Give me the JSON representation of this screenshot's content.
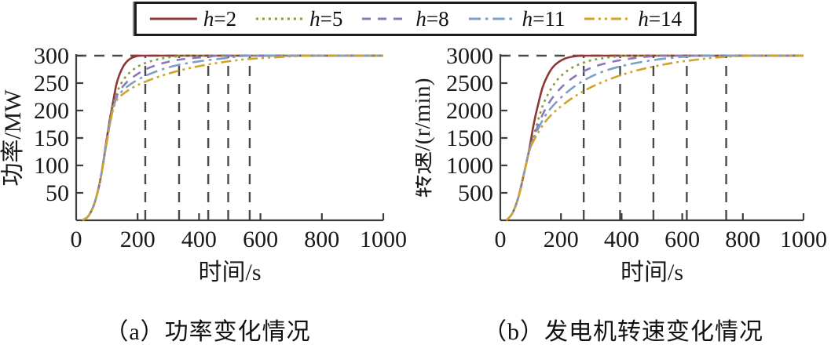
{
  "colors": {
    "axis": "#3d3d3d",
    "text": "#1a1a1a",
    "guide_dash": "#4a4a4a",
    "legend_border": "#1a1a1a"
  },
  "legend": {
    "items": [
      {
        "label": "h=2",
        "color": "#8e3734",
        "dash": "solid"
      },
      {
        "label": "h=5",
        "color": "#8a9a3c",
        "dash": "dotted"
      },
      {
        "label": "h=8",
        "color": "#8779b9",
        "dash": "dashed"
      },
      {
        "label": "h=11",
        "color": "#7d9fc7",
        "dash": "dashdot"
      },
      {
        "label": "h=14",
        "color": "#d2a32b",
        "dash": "dashdotdot"
      }
    ]
  },
  "chart_data": [
    {
      "type": "line",
      "title": "（a）功率变化情况",
      "xlabel": "时间/s",
      "ylabel": "功率/MW",
      "xlim": [
        0,
        1000
      ],
      "ylim": [
        0,
        300
      ],
      "xticks": [
        0,
        200,
        400,
        600,
        800,
        1000
      ],
      "yticks": [
        50,
        100,
        150,
        200,
        250,
        300
      ],
      "grid": false,
      "legend_position": "top-outside",
      "steady_state_dashed_line_y": 300,
      "settling_time_dashed_lines_x": [
        225,
        335,
        430,
        495,
        565
      ],
      "series": [
        {
          "name": "h=2",
          "x": [
            20,
            40,
            60,
            80,
            100,
            110,
            120,
            130,
            140,
            155,
            170,
            190,
            210,
            260,
            1000
          ],
          "y": [
            0,
            8,
            32,
            78,
            150,
            185,
            215,
            245,
            264,
            282,
            292,
            298,
            300,
            300,
            300
          ]
        },
        {
          "name": "h=5",
          "x": [
            20,
            40,
            60,
            80,
            100,
            110,
            120,
            135,
            155,
            180,
            210,
            250,
            290,
            335,
            400,
            1000
          ],
          "y": [
            0,
            8,
            32,
            78,
            148,
            182,
            210,
            236,
            257,
            272,
            283,
            291,
            296,
            299,
            300,
            300
          ]
        },
        {
          "name": "h=8",
          "x": [
            20,
            40,
            60,
            80,
            100,
            110,
            120,
            135,
            160,
            190,
            230,
            280,
            340,
            430,
            510,
            1000
          ],
          "y": [
            0,
            8,
            32,
            78,
            146,
            179,
            207,
            230,
            249,
            263,
            276,
            286,
            293,
            298,
            300,
            300
          ]
        },
        {
          "name": "h=11",
          "x": [
            20,
            40,
            60,
            80,
            100,
            110,
            120,
            135,
            165,
            200,
            250,
            310,
            380,
            495,
            590,
            1000
          ],
          "y": [
            0,
            8,
            32,
            78,
            145,
            177,
            204,
            226,
            243,
            256,
            269,
            280,
            288,
            296,
            300,
            300
          ]
        },
        {
          "name": "h=14",
          "x": [
            20,
            40,
            60,
            80,
            100,
            110,
            120,
            135,
            170,
            210,
            265,
            330,
            410,
            500,
            565,
            680,
            780,
            1000
          ],
          "y": [
            0,
            8,
            32,
            78,
            143,
            175,
            201,
            221,
            237,
            249,
            261,
            272,
            282,
            290,
            294,
            298,
            300,
            300
          ]
        }
      ]
    },
    {
      "type": "line",
      "title": "（b）发电机转速变化情况",
      "xlabel": "时间/s",
      "ylabel": "转速/(r/min)",
      "xlim": [
        0,
        1000
      ],
      "ylim": [
        0,
        3000
      ],
      "xticks": [
        0,
        200,
        400,
        600,
        800,
        1000
      ],
      "yticks": [
        500,
        1000,
        1500,
        2000,
        2500,
        3000
      ],
      "grid": false,
      "legend_position": "top-outside",
      "steady_state_dashed_line_y": 3000,
      "settling_time_dashed_lines_x": [
        275,
        395,
        505,
        615,
        745
      ],
      "series": [
        {
          "name": "h=2",
          "x": [
            20,
            40,
            60,
            80,
            95,
            110,
            125,
            140,
            160,
            180,
            210,
            240,
            275,
            330,
            1000
          ],
          "y": [
            0,
            130,
            430,
            900,
            1280,
            1750,
            2120,
            2430,
            2680,
            2830,
            2940,
            2985,
            3000,
            3000,
            3000
          ]
        },
        {
          "name": "h=5",
          "x": [
            20,
            40,
            60,
            80,
            95,
            115,
            140,
            170,
            200,
            240,
            290,
            340,
            395,
            460,
            1000
          ],
          "y": [
            0,
            130,
            430,
            900,
            1270,
            1640,
            2090,
            2420,
            2630,
            2790,
            2900,
            2955,
            2990,
            3000,
            3000
          ]
        },
        {
          "name": "h=8",
          "x": [
            20,
            40,
            60,
            80,
            95,
            115,
            145,
            180,
            225,
            280,
            340,
            420,
            505,
            580,
            1000
          ],
          "y": [
            0,
            130,
            430,
            900,
            1260,
            1590,
            1990,
            2290,
            2540,
            2730,
            2850,
            2940,
            2990,
            3000,
            3000
          ]
        },
        {
          "name": "h=11",
          "x": [
            20,
            40,
            60,
            80,
            95,
            115,
            150,
            195,
            250,
            320,
            400,
            500,
            615,
            700,
            1000
          ],
          "y": [
            0,
            130,
            430,
            900,
            1255,
            1550,
            1920,
            2210,
            2460,
            2670,
            2810,
            2915,
            2985,
            3000,
            3000
          ]
        },
        {
          "name": "h=14",
          "x": [
            20,
            40,
            60,
            80,
            95,
            115,
            155,
            210,
            280,
            360,
            450,
            560,
            660,
            745,
            850,
            1000
          ],
          "y": [
            0,
            130,
            430,
            900,
            1250,
            1500,
            1840,
            2120,
            2370,
            2570,
            2730,
            2860,
            2935,
            2980,
            3000,
            3000
          ]
        }
      ]
    }
  ]
}
